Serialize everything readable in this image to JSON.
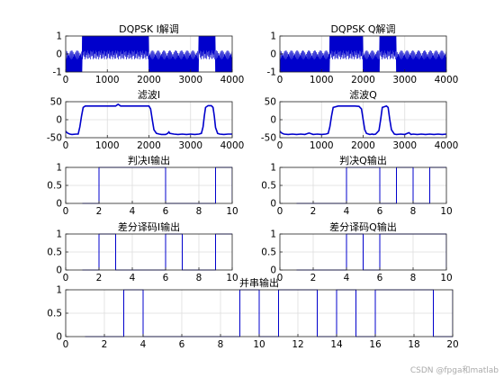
{
  "watermark": "CSDN @fpga和matlab",
  "colors": {
    "trace": "#0000cc",
    "axes": "#262626",
    "grid": "#dddddd",
    "text": "#000000"
  },
  "chart_data": [
    {
      "id": "dqpsk-i-demod",
      "type": "line",
      "title": "DQPSK I解调",
      "xlim": [
        0,
        4000
      ],
      "ylim": [
        -1,
        1
      ],
      "xticks": [
        0,
        1000,
        2000,
        3000,
        4000
      ],
      "yticks": [
        -1,
        0,
        1
      ],
      "grid": true,
      "render": "carrier",
      "x": [
        0,
        400,
        1200,
        2000,
        2400,
        3200,
        3600,
        4000
      ],
      "envelope": [
        -1,
        1,
        1,
        -1,
        -1,
        1,
        -1,
        -1
      ]
    },
    {
      "id": "dqpsk-q-demod",
      "type": "line",
      "title": "DQPSK Q解调",
      "xlim": [
        0,
        4000
      ],
      "ylim": [
        -1,
        1
      ],
      "xticks": [
        0,
        1000,
        2000,
        3000,
        4000
      ],
      "yticks": [
        -1,
        0,
        1
      ],
      "grid": true,
      "render": "carrier",
      "x": [
        0,
        1200,
        2000,
        2400,
        2800,
        4000
      ],
      "envelope": [
        -1,
        1,
        -1,
        1,
        -1,
        -1
      ]
    },
    {
      "id": "filtered-i",
      "type": "line",
      "title": "滤波I",
      "xlim": [
        0,
        4000
      ],
      "ylim": [
        -50,
        50
      ],
      "xticks": [
        0,
        1000,
        2000,
        3000,
        4000
      ],
      "yticks": [
        -50,
        0,
        50
      ],
      "grid": true,
      "render": "line",
      "x": [
        0,
        30,
        60,
        100,
        150,
        250,
        300,
        340,
        380,
        420,
        470,
        600,
        800,
        1000,
        1200,
        1260,
        1320,
        1400,
        1600,
        1800,
        2000,
        2040,
        2080,
        2120,
        2180,
        2250,
        2300,
        2400,
        2450,
        2480,
        2500,
        2600,
        2700,
        2800,
        2900,
        3000,
        3100,
        3200,
        3260,
        3300,
        3330,
        3360,
        3420,
        3500,
        3540,
        3570,
        3600,
        3650,
        3700,
        3800,
        3900,
        4000
      ],
      "y": [
        -32,
        -36,
        -38,
        -40,
        -41,
        -40,
        -40,
        -20,
        10,
        34,
        38,
        38,
        38,
        38,
        38,
        43,
        38,
        38,
        38,
        38,
        38,
        30,
        0,
        -28,
        -38,
        -40,
        -41,
        -41,
        -38,
        -34,
        -38,
        -40,
        -41,
        -40,
        -41,
        -40,
        -41,
        -40,
        -38,
        -20,
        10,
        34,
        39,
        39,
        34,
        10,
        -22,
        -38,
        -40,
        -41,
        -40,
        -40
      ]
    },
    {
      "id": "filtered-q",
      "type": "line",
      "title": "滤波Q",
      "xlim": [
        0,
        4000
      ],
      "ylim": [
        -50,
        50
      ],
      "xticks": [
        0,
        1000,
        2000,
        3000,
        4000
      ],
      "yticks": [
        -50,
        0,
        50
      ],
      "grid": true,
      "render": "line",
      "x": [
        0,
        30,
        60,
        100,
        200,
        300,
        400,
        500,
        600,
        700,
        800,
        900,
        1000,
        1100,
        1160,
        1200,
        1240,
        1280,
        1400,
        1600,
        1800,
        1900,
        1960,
        2000,
        2040,
        2080,
        2160,
        2220,
        2250,
        2300,
        2380,
        2420,
        2460,
        2560,
        2600,
        2640,
        2680,
        2750,
        2800,
        2900,
        3000,
        3100,
        3150,
        3200,
        3300,
        3400,
        3500,
        3600,
        3700,
        3800,
        3900,
        4000
      ],
      "y": [
        -32,
        -36,
        -38,
        -40,
        -41,
        -40,
        -41,
        -40,
        -41,
        -37,
        -41,
        -40,
        -41,
        -40,
        -38,
        -20,
        10,
        34,
        38,
        38,
        38,
        37,
        30,
        0,
        -28,
        -38,
        -41,
        -40,
        -41,
        -40,
        -30,
        0,
        34,
        38,
        34,
        0,
        -28,
        -40,
        -41,
        -40,
        -41,
        -36,
        -41,
        -40,
        -41,
        -40,
        -41,
        -40,
        -41,
        -40,
        -41,
        -40
      ]
    },
    {
      "id": "decision-i",
      "type": "line",
      "title": "判决I输出",
      "xlim": [
        0,
        10
      ],
      "ylim": [
        0,
        1
      ],
      "xticks": [
        0,
        2,
        4,
        6,
        8,
        10
      ],
      "yticks": [
        0,
        0.5,
        1
      ],
      "grid": true,
      "render": "step",
      "x": [
        1,
        2,
        3,
        4,
        5,
        6,
        7,
        8,
        9,
        10
      ],
      "y": [
        0,
        1,
        1,
        1,
        1,
        0,
        0,
        0,
        1,
        0
      ]
    },
    {
      "id": "decision-q",
      "type": "line",
      "title": "判决Q输出",
      "xlim": [
        0,
        10
      ],
      "ylim": [
        0,
        1
      ],
      "xticks": [
        0,
        2,
        4,
        6,
        8,
        10
      ],
      "yticks": [
        0,
        0.5,
        1
      ],
      "grid": true,
      "render": "step",
      "x": [
        1,
        2,
        3,
        4,
        5,
        6,
        7,
        8,
        9,
        10
      ],
      "y": [
        0,
        0,
        0,
        1,
        1,
        0,
        1,
        0,
        1,
        1
      ]
    },
    {
      "id": "diff-decode-i",
      "type": "line",
      "title": "差分译码I输出",
      "xlim": [
        0,
        10
      ],
      "ylim": [
        0,
        1
      ],
      "xticks": [
        0,
        2,
        4,
        6,
        8,
        10
      ],
      "yticks": [
        0,
        0.5,
        1
      ],
      "grid": true,
      "render": "step",
      "x": [
        1,
        2,
        3,
        4,
        5,
        6,
        7,
        8,
        9,
        10
      ],
      "y": [
        0,
        1,
        0,
        0,
        0,
        1,
        0,
        0,
        1,
        1
      ]
    },
    {
      "id": "diff-decode-q",
      "type": "line",
      "title": "差分译码Q输出",
      "xlim": [
        0,
        10
      ],
      "ylim": [
        0,
        1
      ],
      "xticks": [
        0,
        2,
        4,
        6,
        8,
        10
      ],
      "yticks": [
        0,
        0.5,
        1
      ],
      "grid": true,
      "render": "step",
      "x": [
        1,
        2,
        3,
        4,
        5,
        6,
        7,
        8,
        9,
        10
      ],
      "y": [
        0,
        0,
        0,
        1,
        0,
        1,
        1,
        1,
        1,
        0
      ]
    },
    {
      "id": "serial-output",
      "type": "line",
      "title": "并串输出",
      "xlim": [
        0,
        20
      ],
      "ylim": [
        0,
        1
      ],
      "xticks": [
        0,
        2,
        4,
        6,
        8,
        10,
        12,
        14,
        16,
        18,
        20
      ],
      "yticks": [
        0,
        0.5,
        1
      ],
      "grid": true,
      "render": "step",
      "x": [
        1,
        2,
        3,
        4,
        5,
        6,
        7,
        8,
        9,
        10,
        11,
        12,
        13,
        14,
        15,
        16,
        17,
        18,
        19,
        20
      ],
      "y": [
        0,
        0,
        1,
        0,
        0,
        0,
        0,
        0,
        1,
        0,
        1,
        1,
        0,
        1,
        0,
        1,
        1,
        1,
        0,
        1
      ]
    }
  ]
}
